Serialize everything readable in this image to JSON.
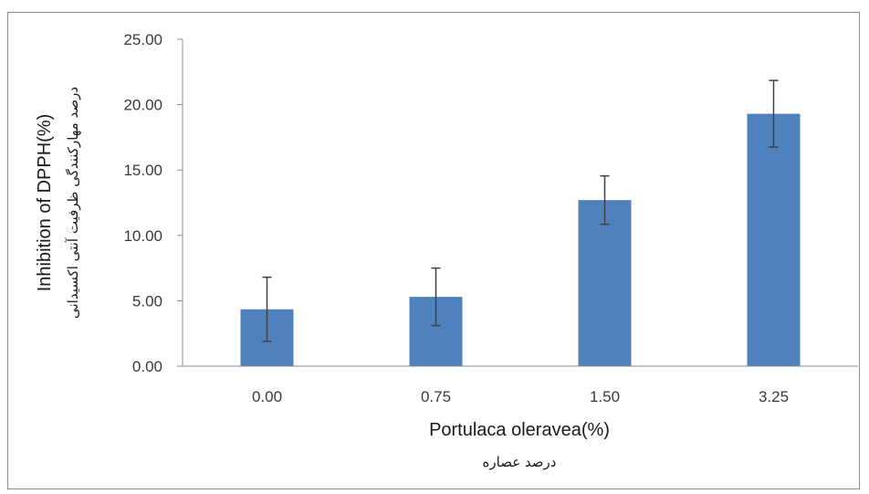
{
  "chart_data": {
    "type": "bar",
    "categories": [
      "0.00",
      "0.75",
      "1.50",
      "3.25"
    ],
    "values": [
      4.35,
      5.3,
      12.7,
      19.3
    ],
    "error": [
      2.45,
      2.2,
      1.85,
      2.55
    ],
    "title": "",
    "xlabel": "Portulaca oleravea(%)",
    "xlabel_sub": "درصد عصاره",
    "ylabel": "Inhibition of  DPPH(%)",
    "ylabel_sub": "درصد مهارکنندگی ظرفیت آنتی اکسیدانی",
    "ylim": [
      0,
      25
    ],
    "yticks": [
      "0.00",
      "5.00",
      "10.00",
      "15.00",
      "20.00",
      "25.00"
    ],
    "grid": false,
    "legend": "none",
    "bar_color": "#4f81bd",
    "errorbar_color": "#404040"
  }
}
